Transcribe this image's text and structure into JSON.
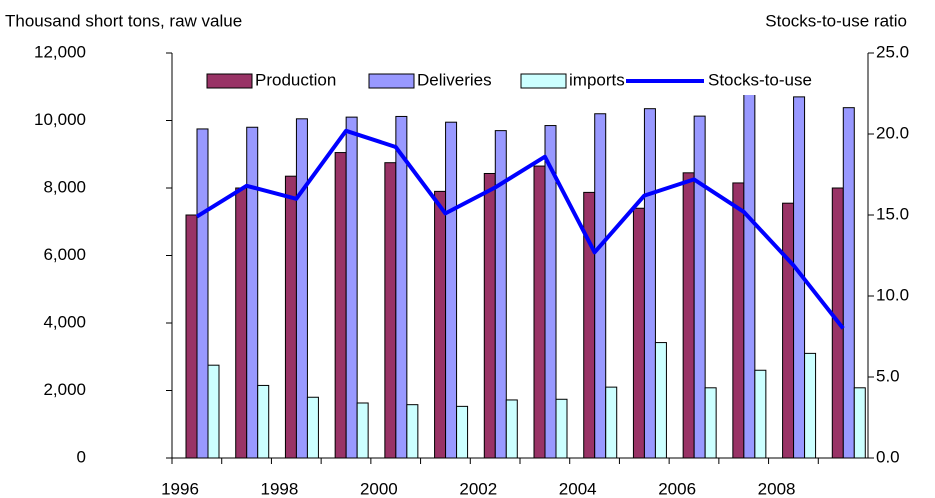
{
  "chart_data": {
    "type": "bar",
    "y_label": "Thousand short tons, raw value",
    "y2_label": "Stocks-to-use ratio",
    "categories": [
      "1996",
      null,
      "1998",
      null,
      "2000",
      null,
      "2002",
      null,
      "2004",
      null,
      "2006",
      null,
      "2008",
      null
    ],
    "series": [
      {
        "name": "Production",
        "color": "#993366",
        "values": [
          7200,
          8000,
          8350,
          9050,
          8750,
          7900,
          8430,
          8650,
          7870,
          7400,
          8450,
          8150,
          7550,
          8000
        ]
      },
      {
        "name": "Deliveries",
        "color": "#9999ff",
        "values": [
          9750,
          9800,
          10050,
          10100,
          10120,
          9950,
          9700,
          9850,
          10200,
          10350,
          10130,
          10800,
          10700,
          10380
        ]
      },
      {
        "name": "imports",
        "color": "#ccffff",
        "values": [
          2750,
          2150,
          1800,
          1630,
          1580,
          1530,
          1720,
          1740,
          2100,
          3420,
          2080,
          2600,
          3100,
          2080
        ]
      },
      {
        "name": "Stocks-to-use",
        "color": "#0000ff",
        "type": "line",
        "axis": "y2",
        "values": [
          14.9,
          16.8,
          16.0,
          20.2,
          19.2,
          15.1,
          16.7,
          18.6,
          12.7,
          16.2,
          17.2,
          15.2,
          11.9,
          8.0
        ]
      }
    ],
    "ylim": [
      0,
      12000
    ],
    "yticks": [
      0,
      {
        "value": 2000,
        "label": "2,000"
      },
      {
        "value": 4000,
        "label": "4,000"
      },
      {
        "value": 6000,
        "label": "6,000"
      },
      {
        "value": 8000,
        "label": "8,000"
      },
      {
        "value": 10000,
        "label": "10,000"
      },
      {
        "value": 12000,
        "label": "12,000"
      }
    ],
    "y2lim": [
      0,
      25
    ],
    "y2ticks": [
      {
        "value": 0,
        "label": "0.0"
      },
      {
        "value": 5,
        "label": "5.0"
      },
      {
        "value": 10,
        "label": "10.0"
      },
      {
        "value": 15,
        "label": "15.0"
      },
      {
        "value": 20,
        "label": "20.0"
      },
      {
        "value": 25,
        "label": "25.0"
      }
    ],
    "grid": false,
    "legend": "top"
  }
}
